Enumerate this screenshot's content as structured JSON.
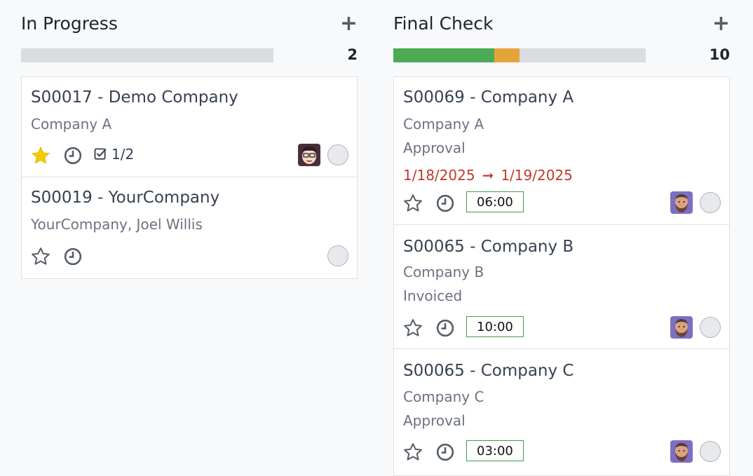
{
  "columns": [
    {
      "title": "In Progress",
      "add_label": "+",
      "count": "2",
      "progress": {
        "green": 0,
        "orange": 0
      },
      "cards": [
        {
          "title": "S00017 - Demo Company",
          "lines": [
            "Company A"
          ],
          "starred": true,
          "tasks": "1/2",
          "avatar": "user-avatar-glasses"
        },
        {
          "title": "S00019 - YourCompany",
          "lines": [
            "YourCompany, Joel Willis"
          ],
          "starred": false
        }
      ]
    },
    {
      "title": "Final Check",
      "add_label": "+",
      "count": "10",
      "progress": {
        "green": 0.4,
        "orange": 0.1
      },
      "cards": [
        {
          "title": "S00069 - Company A",
          "lines": [
            "Company A",
            "Approval"
          ],
          "date_start": "1/18/2025",
          "date_arrow": "➞",
          "date_end": "1/19/2025",
          "starred": false,
          "time": "06:00",
          "avatar": "user-avatar-beard"
        },
        {
          "title": "S00065 - Company B",
          "lines": [
            "Company B",
            "Invoiced"
          ],
          "starred": false,
          "time": "10:00",
          "avatar": "user-avatar-beard"
        },
        {
          "title": "S00065 - Company C",
          "lines": [
            "Company C",
            "Approval"
          ],
          "starred": false,
          "time": "03:00",
          "avatar": "user-avatar-beard"
        }
      ]
    }
  ],
  "colors": {
    "star_active": "#f3cc00",
    "date_overdue": "#c0392b",
    "time_border": "#3e9b4f",
    "progress_green": "#4caa55",
    "progress_orange": "#e5a43b"
  }
}
